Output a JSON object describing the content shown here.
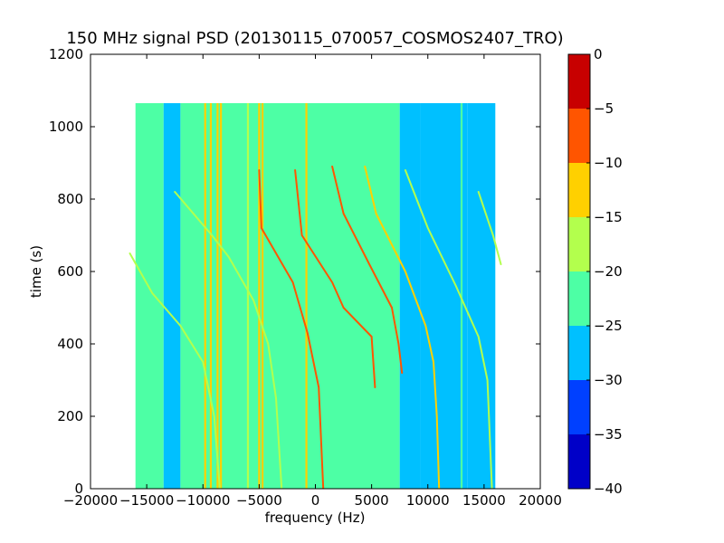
{
  "chart_data": {
    "type": "heatmap",
    "title": "150 MHz signal PSD (20130115_070057_COSMOS2407_TRO)",
    "xlabel": "frequency (Hz)",
    "ylabel": "time (s)",
    "xlim": [
      -20000,
      20000
    ],
    "ylim": [
      0,
      1200
    ],
    "xticks": [
      -20000,
      -15000,
      -10000,
      -5000,
      0,
      5000,
      10000,
      15000,
      20000
    ],
    "xtick_labels": [
      "−20000",
      "−15000",
      "−10000",
      "−5000",
      "0",
      "5000",
      "10000",
      "15000",
      "20000"
    ],
    "yticks": [
      0,
      200,
      400,
      600,
      800,
      1000,
      1200
    ],
    "ytick_labels": [
      "0",
      "200",
      "400",
      "600",
      "800",
      "1000",
      "1200"
    ],
    "data_extent": {
      "x": [
        -16000,
        16000
      ],
      "y": [
        0,
        1065
      ]
    },
    "colorbar": {
      "levels": [
        -40,
        -35,
        -30,
        -25,
        -20,
        -15,
        -10,
        -5,
        0
      ],
      "tick_labels": [
        "−40",
        "−35",
        "−30",
        "−25",
        "−20",
        "−15",
        "−10",
        "−5",
        "0"
      ],
      "colors": [
        "#0000c8",
        "#0040ff",
        "#00c0ff",
        "#4dffa5",
        "#b3ff4d",
        "#ffd000",
        "#ff5500",
        "#c80000"
      ]
    },
    "background_bands": [
      {
        "x": [
          -16000,
          -13500
        ],
        "level": -25
      },
      {
        "x": [
          -13500,
          -12000
        ],
        "level": -26
      },
      {
        "x": [
          -12000,
          7500
        ],
        "level": -23
      },
      {
        "x": [
          7500,
          9300
        ],
        "level": -26
      },
      {
        "x": [
          9300,
          13500
        ],
        "level": -27
      },
      {
        "x": [
          13500,
          16000
        ],
        "level": -26
      }
    ],
    "vertical_lines": [
      {
        "x": -9800,
        "level": -12
      },
      {
        "x": -9300,
        "level": -14
      },
      {
        "x": -8700,
        "level": -12
      },
      {
        "x": -8400,
        "level": -14
      },
      {
        "x": -6000,
        "level": -17
      },
      {
        "x": -5000,
        "level": -12
      },
      {
        "x": -4700,
        "level": -15
      },
      {
        "x": -800,
        "level": -15
      },
      {
        "x": 13000,
        "level": -21
      }
    ],
    "doppler_tracks": [
      {
        "name": "",
        "level": -19,
        "points": [
          [
            -16500,
            650
          ],
          [
            -14500,
            540
          ],
          [
            -12000,
            450
          ],
          [
            -10000,
            350
          ],
          [
            -9000,
            200
          ],
          [
            -8500,
            0
          ]
        ]
      },
      {
        "name": "",
        "level": -18,
        "points": [
          [
            -12500,
            820
          ],
          [
            -9200,
            700
          ],
          [
            -7700,
            640
          ],
          [
            -5500,
            520
          ],
          [
            -4200,
            400
          ],
          [
            -3500,
            250
          ],
          [
            -3000,
            0
          ]
        ]
      },
      {
        "name": "",
        "level": -8,
        "points": [
          [
            -5000,
            880
          ],
          [
            -4800,
            720
          ],
          [
            -2000,
            570
          ],
          [
            -700,
            430
          ],
          [
            300,
            280
          ],
          [
            700,
            0
          ]
        ]
      },
      {
        "name": "",
        "level": -8,
        "points": [
          [
            -1800,
            880
          ],
          [
            -1200,
            700
          ],
          [
            1500,
            570
          ],
          [
            2500,
            500
          ],
          [
            5000,
            420
          ],
          [
            5300,
            280
          ]
        ]
      },
      {
        "name": "",
        "level": -8,
        "points": [
          [
            1500,
            890
          ],
          [
            2500,
            760
          ],
          [
            4800,
            620
          ],
          [
            6800,
            500
          ],
          [
            7400,
            400
          ],
          [
            7700,
            320
          ]
        ]
      },
      {
        "name": "",
        "level": -13,
        "points": [
          [
            4400,
            890
          ],
          [
            5400,
            760
          ],
          [
            8000,
            600
          ],
          [
            9800,
            450
          ],
          [
            10500,
            350
          ],
          [
            10800,
            200
          ],
          [
            11000,
            0
          ]
        ]
      },
      {
        "name": "",
        "level": -19,
        "points": [
          [
            8000,
            880
          ],
          [
            10000,
            720
          ],
          [
            12500,
            560
          ],
          [
            14500,
            420
          ],
          [
            15300,
            300
          ],
          [
            15700,
            0
          ]
        ]
      },
      {
        "name": "",
        "level": -19,
        "points": [
          [
            14500,
            820
          ],
          [
            15800,
            700
          ],
          [
            16500,
            620
          ]
        ]
      }
    ],
    "grid": false,
    "legend": "none"
  }
}
